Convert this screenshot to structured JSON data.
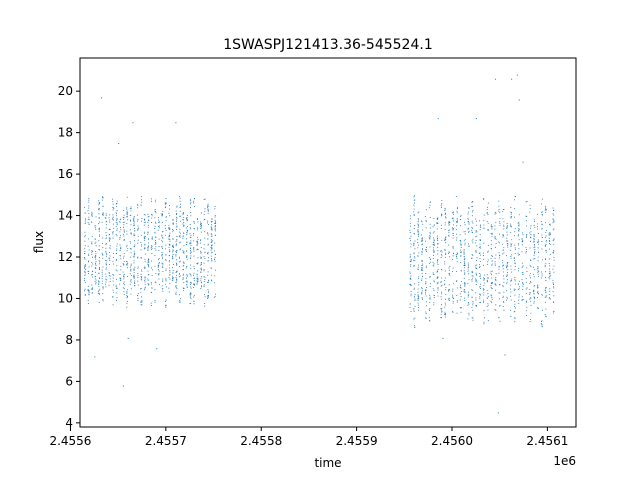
{
  "chart_data": {
    "type": "scatter",
    "title": "1SWASPJ121413.36-545524.1",
    "xlabel": "time",
    "ylabel": "flux",
    "x_offset_label": "1e6",
    "xlim": [
      2.45561,
      2.45613
    ],
    "ylim": [
      3.8,
      21.6
    ],
    "x_ticks": [
      2.4556,
      2.4557,
      2.4558,
      2.4559,
      2.456,
      2.4561
    ],
    "x_tick_labels": [
      "2.4556",
      "2.4557",
      "2.4558",
      "2.4559",
      "2.4560",
      "2.4561"
    ],
    "y_ticks": [
      4,
      6,
      8,
      10,
      12,
      14,
      16,
      18,
      20
    ],
    "y_tick_labels": [
      "4",
      "6",
      "8",
      "10",
      "12",
      "14",
      "16",
      "18",
      "20"
    ],
    "grid": false,
    "legend": "none",
    "point_color": "#1f77b4",
    "series": [
      {
        "segments": [
          {
            "x_start": 2.455613,
            "x_end": 2.455753,
            "flux_low": 9.6,
            "flux_high": 15.1,
            "center": 12.3
          },
          {
            "x_start": 2.455954,
            "x_end": 2.456108,
            "flux_low": 8.6,
            "flux_high": 15.0,
            "center": 11.8
          }
        ],
        "outliers": [
          [
            2.455632,
            19.7
          ],
          [
            2.455665,
            18.5
          ],
          [
            2.45565,
            17.5
          ],
          [
            2.45571,
            18.5
          ],
          [
            2.45566,
            8.1
          ],
          [
            2.455655,
            5.8
          ],
          [
            2.455625,
            7.2
          ],
          [
            2.45569,
            7.6
          ],
          [
            2.455985,
            18.7
          ],
          [
            2.456025,
            18.7
          ],
          [
            2.456045,
            20.6
          ],
          [
            2.456062,
            20.6
          ],
          [
            2.456068,
            20.8
          ],
          [
            2.456055,
            7.3
          ],
          [
            2.456048,
            4.5
          ],
          [
            2.45599,
            8.1
          ],
          [
            2.45607,
            19.6
          ],
          [
            2.456074,
            16.6
          ]
        ]
      }
    ]
  }
}
